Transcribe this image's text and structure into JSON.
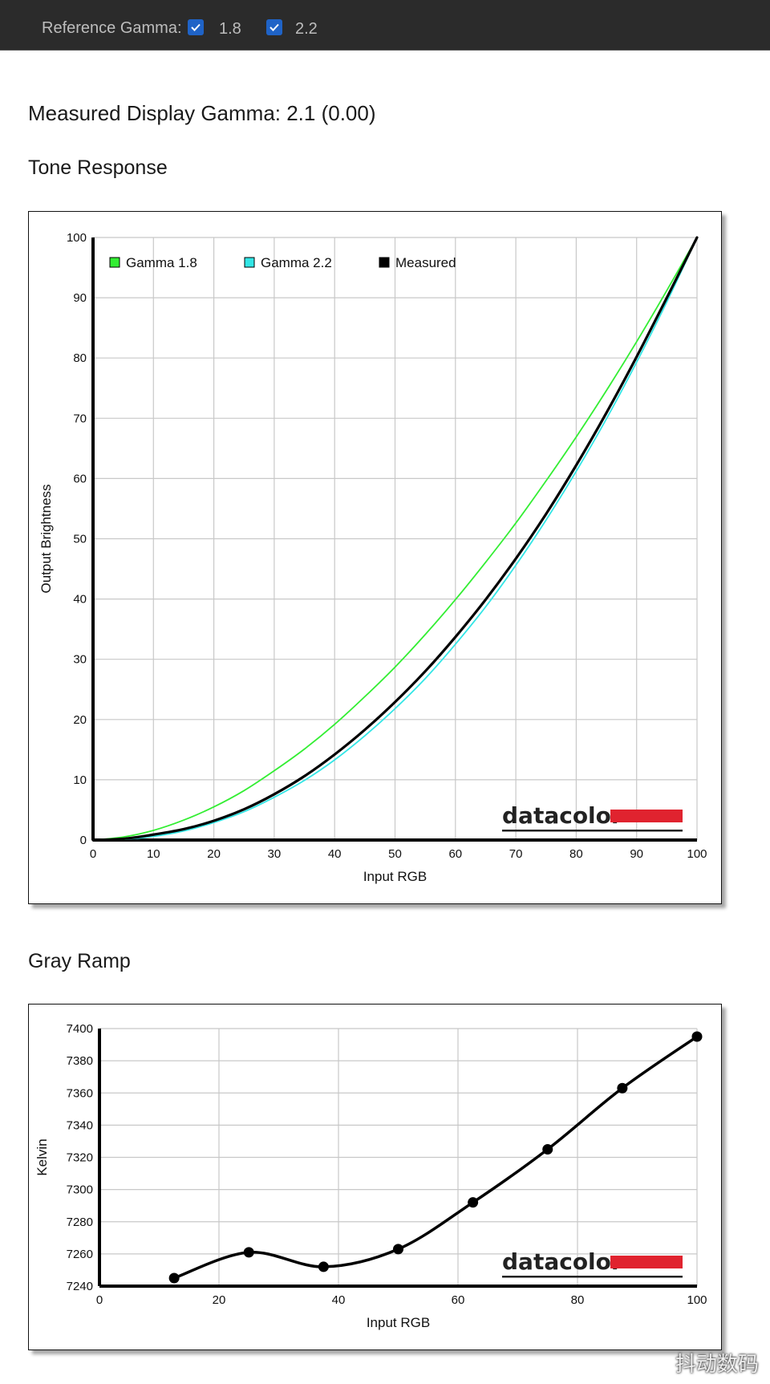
{
  "toolbar": {
    "label": "Reference Gamma:",
    "options": [
      {
        "label": "1.8",
        "checked": true
      },
      {
        "label": "2.2",
        "checked": true
      }
    ]
  },
  "measured_text": "Measured Display Gamma: 2.1 (0.00)",
  "sections": {
    "tone": "Tone Response",
    "gray": "Gray Ramp"
  },
  "logo_text": "datacolor",
  "watermark": "抖动数码",
  "colors": {
    "gamma18": "#33ee33",
    "gamma22": "#33e6e6",
    "measured": "#000000",
    "logo_red": "#e0232f"
  },
  "chart_data": [
    {
      "type": "line",
      "xlabel": "Input RGB",
      "ylabel": "Output Brightness",
      "xlim": [
        0,
        100
      ],
      "ylim": [
        0,
        100
      ],
      "xticks": [
        0,
        10,
        20,
        30,
        40,
        50,
        60,
        70,
        80,
        90,
        100
      ],
      "yticks": [
        0,
        10,
        20,
        30,
        40,
        50,
        60,
        70,
        80,
        90,
        100
      ],
      "grid": true,
      "legend_position": "top-left",
      "series": [
        {
          "name": "Gamma 1.8",
          "x": [
            0,
            5,
            10,
            15,
            20,
            25,
            30,
            35,
            40,
            45,
            50,
            55,
            60,
            65,
            70,
            75,
            80,
            85,
            90,
            95,
            100
          ],
          "y": [
            0,
            0.5,
            1.6,
            3.3,
            5.5,
            8.2,
            11.5,
            15.1,
            19.2,
            23.8,
            28.7,
            34.1,
            39.9,
            46.1,
            52.6,
            59.6,
            66.9,
            74.6,
            82.7,
            91.2,
            100
          ]
        },
        {
          "name": "Gamma 2.2",
          "x": [
            0,
            5,
            10,
            15,
            20,
            25,
            30,
            35,
            40,
            45,
            50,
            55,
            60,
            65,
            70,
            75,
            80,
            85,
            90,
            95,
            100
          ],
          "y": [
            0,
            0.1,
            0.6,
            1.5,
            2.9,
            4.7,
            7.1,
            9.9,
            13.3,
            17.3,
            21.8,
            26.8,
            32.5,
            38.7,
            45.6,
            53.1,
            61.2,
            69.9,
            79.3,
            89.3,
            100
          ]
        },
        {
          "name": "Measured",
          "x": [
            0,
            5,
            10,
            15,
            20,
            25,
            30,
            35,
            40,
            45,
            50,
            55,
            60,
            65,
            70,
            75,
            80,
            85,
            90,
            95,
            100
          ],
          "y": [
            0,
            0.2,
            0.9,
            1.8,
            3.2,
            5.1,
            7.6,
            10.6,
            14.2,
            18.3,
            22.9,
            28.0,
            33.7,
            39.9,
            46.7,
            54.1,
            62.2,
            70.9,
            80.2,
            90.0,
            100
          ]
        }
      ]
    },
    {
      "type": "line",
      "xlabel": "Input RGB",
      "ylabel": "Kelvin",
      "xlim": [
        0,
        100
      ],
      "ylim": [
        7240,
        7400
      ],
      "xticks": [
        0,
        20,
        40,
        60,
        80,
        100
      ],
      "yticks": [
        7240,
        7260,
        7280,
        7300,
        7320,
        7340,
        7360,
        7380,
        7400
      ],
      "grid": true,
      "series": [
        {
          "name": "",
          "x": [
            12.5,
            25,
            37.5,
            50,
            62.5,
            75,
            87.5,
            100
          ],
          "y": [
            7245,
            7261,
            7252,
            7263,
            7292,
            7325,
            7363,
            7395
          ]
        }
      ]
    }
  ]
}
